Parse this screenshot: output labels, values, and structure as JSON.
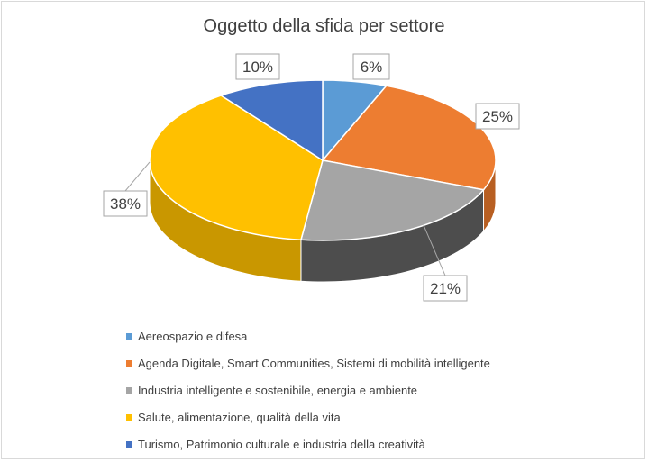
{
  "chart_data": {
    "type": "pie",
    "title": "Oggetto della sfida per settore",
    "slices": [
      {
        "name": "Aereospazio e difesa",
        "value": 6,
        "label": "6%",
        "color": "#5b9bd5",
        "side_color": "#4a7fb0"
      },
      {
        "name": "Agenda Digitale, Smart Communities, Sistemi di mobilità intelligente",
        "value": 25,
        "label": "25%",
        "color": "#ed7d31",
        "side_color": "#b85f22"
      },
      {
        "name": "Industria intelligente e sostenibile, energia e ambiente",
        "value": 21,
        "label": "21%",
        "color": "#a5a5a5",
        "side_color": "#4d4d4d"
      },
      {
        "name": "Salute, alimentazione, qualità della vita",
        "value": 38,
        "label": "38%",
        "color": "#ffc000",
        "side_color": "#c99700"
      },
      {
        "name": "Turismo, Patrimonio culturale e industria della creatività",
        "value": 10,
        "label": "10%",
        "color": "#4472c4",
        "side_color": "#345a9c"
      }
    ],
    "legend_position": "bottom",
    "style": "3d-pie",
    "label_style": "callout"
  }
}
